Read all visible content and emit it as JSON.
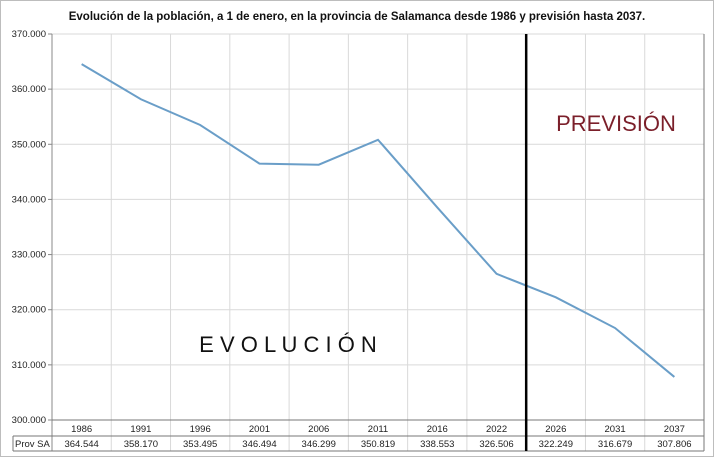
{
  "chart_data": {
    "type": "line",
    "title": "Evolución de la población, a 1 de enero, en la provincia de Salamanca desde 1986 y previsión hasta 2037.",
    "categories": [
      "1986",
      "1991",
      "1996",
      "2001",
      "2006",
      "2011",
      "2016",
      "2022",
      "2026",
      "2031",
      "2037"
    ],
    "series": [
      {
        "name": "Prov SA",
        "values": [
          364544,
          358170,
          353495,
          346494,
          346299,
          350819,
          338553,
          326506,
          322249,
          316679,
          307806
        ],
        "labels": [
          "364.544",
          "358.170",
          "353.495",
          "346.494",
          "346.299",
          "350.819",
          "338.553",
          "326.506",
          "322.249",
          "316.679",
          "307.806"
        ]
      }
    ],
    "ylim": [
      300000,
      370000
    ],
    "yticks": [
      "300.000",
      "310.000",
      "320.000",
      "330.000",
      "340.000",
      "350.000",
      "360.000",
      "370.000"
    ],
    "grid": true,
    "data_table": true,
    "divider_between": [
      "2022",
      "2026"
    ],
    "annotations": {
      "evolucion": "E V O L U C I Ó N",
      "prevision": "PREVISIÓN"
    },
    "colors": {
      "line": "#6a9ec8",
      "prevision": "#7b1f2a",
      "divider": "#000000",
      "grid": "#d9d9d9"
    }
  }
}
